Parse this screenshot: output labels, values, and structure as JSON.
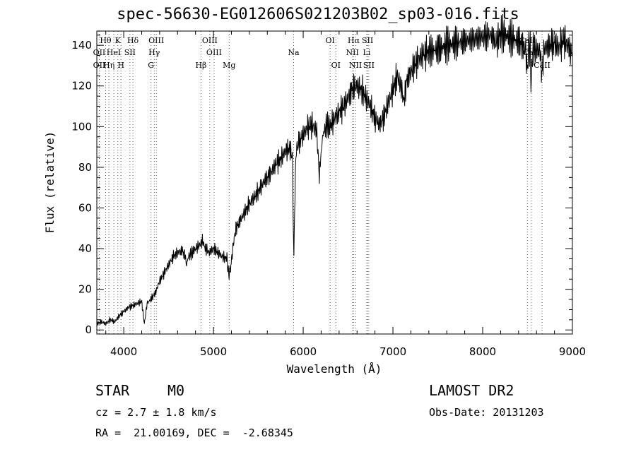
{
  "info": {
    "object_class": "STAR",
    "subclass": "M0",
    "survey": "LAMOST DR2",
    "redshift": "cz = 2.7 ± 1.8 km/s",
    "obs_date": "Obs-Date: 20131203",
    "coords": "RA =  21.00169, DEC =  -2.68345"
  },
  "chart_data": {
    "type": "line",
    "title": "spec-56630-EG012606S021203B02_sp03-016.fits",
    "xlabel": "Wavelength (Å)",
    "ylabel": "Flux (relative)",
    "xlim": [
      3700,
      9000
    ],
    "ylim": [
      -2,
      147
    ],
    "x_ticks": [
      4000,
      5000,
      6000,
      7000,
      8000,
      9000
    ],
    "y_ticks": [
      0,
      20,
      40,
      60,
      80,
      100,
      120,
      140
    ],
    "grid": false,
    "series": [
      {
        "points": [
          [
            3700,
            3
          ],
          [
            3750,
            4
          ],
          [
            3800,
            3
          ],
          [
            3850,
            5
          ],
          [
            3900,
            4
          ],
          [
            3950,
            7
          ],
          [
            4000,
            9
          ],
          [
            4050,
            11
          ],
          [
            4100,
            12
          ],
          [
            4150,
            13
          ],
          [
            4200,
            14
          ],
          [
            4230,
            3
          ],
          [
            4260,
            13
          ],
          [
            4300,
            15
          ],
          [
            4350,
            18
          ],
          [
            4400,
            24
          ],
          [
            4450,
            28
          ],
          [
            4500,
            32
          ],
          [
            4550,
            36
          ],
          [
            4600,
            38
          ],
          [
            4650,
            39
          ],
          [
            4680,
            37
          ],
          [
            4700,
            32
          ],
          [
            4720,
            36
          ],
          [
            4760,
            38
          ],
          [
            4800,
            40
          ],
          [
            4850,
            42
          ],
          [
            4880,
            44
          ],
          [
            4900,
            41
          ],
          [
            4950,
            38
          ],
          [
            5000,
            40
          ],
          [
            5050,
            38
          ],
          [
            5100,
            36
          ],
          [
            5150,
            35
          ],
          [
            5170,
            27
          ],
          [
            5190,
            30
          ],
          [
            5220,
            42
          ],
          [
            5250,
            50
          ],
          [
            5300,
            54
          ],
          [
            5350,
            58
          ],
          [
            5400,
            62
          ],
          [
            5450,
            65
          ],
          [
            5500,
            68
          ],
          [
            5550,
            72
          ],
          [
            5600,
            75
          ],
          [
            5650,
            78
          ],
          [
            5700,
            82
          ],
          [
            5750,
            84
          ],
          [
            5800,
            88
          ],
          [
            5850,
            89
          ],
          [
            5880,
            85
          ],
          [
            5890,
            50
          ],
          [
            5896,
            35
          ],
          [
            5905,
            60
          ],
          [
            5920,
            88
          ],
          [
            5950,
            92
          ],
          [
            6000,
            96
          ],
          [
            6050,
            100
          ],
          [
            6100,
            101
          ],
          [
            6150,
            98
          ],
          [
            6170,
            83
          ],
          [
            6180,
            75
          ],
          [
            6195,
            85
          ],
          [
            6220,
            96
          ],
          [
            6260,
            101
          ],
          [
            6300,
            100
          ],
          [
            6350,
            104
          ],
          [
            6400,
            107
          ],
          [
            6450,
            110
          ],
          [
            6500,
            114
          ],
          [
            6550,
            119
          ],
          [
            6600,
            120
          ],
          [
            6650,
            118
          ],
          [
            6700,
            114
          ],
          [
            6750,
            110
          ],
          [
            6800,
            104
          ],
          [
            6850,
            101
          ],
          [
            6900,
            105
          ],
          [
            6950,
            112
          ],
          [
            7000,
            118
          ],
          [
            7050,
            125
          ],
          [
            7100,
            118
          ],
          [
            7120,
            112
          ],
          [
            7150,
            122
          ],
          [
            7200,
            127
          ],
          [
            7250,
            131
          ],
          [
            7300,
            134
          ],
          [
            7350,
            136
          ],
          [
            7400,
            137
          ],
          [
            7500,
            138
          ],
          [
            7600,
            140
          ],
          [
            7700,
            141
          ],
          [
            7800,
            142
          ],
          [
            7900,
            143
          ],
          [
            8000,
            144
          ],
          [
            8100,
            145
          ],
          [
            8150,
            141
          ],
          [
            8200,
            146
          ],
          [
            8300,
            144
          ],
          [
            8400,
            142
          ],
          [
            8450,
            140
          ],
          [
            8480,
            138
          ],
          [
            8498,
            126
          ],
          [
            8510,
            139
          ],
          [
            8530,
            138
          ],
          [
            8542,
            118
          ],
          [
            8555,
            138
          ],
          [
            8600,
            138
          ],
          [
            8640,
            137
          ],
          [
            8662,
            125
          ],
          [
            8680,
            138
          ],
          [
            8750,
            140
          ],
          [
            8800,
            141
          ],
          [
            8850,
            139
          ],
          [
            8900,
            143
          ],
          [
            8950,
            140
          ],
          [
            9000,
            135
          ]
        ]
      }
    ],
    "line_markers": [
      {
        "label": "Hθ",
        "x": 3798,
        "row": 0
      },
      {
        "label": "K",
        "x": 3934,
        "row": 0
      },
      {
        "label": "Hδ",
        "x": 4102,
        "row": 0
      },
      {
        "label": "OIII",
        "x": 4363,
        "row": 0
      },
      {
        "label": "OIII",
        "x": 4959,
        "row": 0
      },
      {
        "label": "OI",
        "x": 6300,
        "row": 0
      },
      {
        "label": "Hα",
        "x": 6563,
        "row": 0
      },
      {
        "label": "SII",
        "x": 6717,
        "row": 0
      },
      {
        "label": "CaII",
        "x": 8498,
        "row": 0
      },
      {
        "label": "OII",
        "x": 3727,
        "row": 1
      },
      {
        "label": "HeI",
        "x": 3889,
        "row": 1
      },
      {
        "label": "SII",
        "x": 4069,
        "row": 1
      },
      {
        "label": "Hγ",
        "x": 4340,
        "row": 1
      },
      {
        "label": "OIII",
        "x": 5007,
        "row": 1
      },
      {
        "label": "Na",
        "x": 5893,
        "row": 1
      },
      {
        "label": "NII",
        "x": 6548,
        "row": 1
      },
      {
        "label": "Li",
        "x": 6708,
        "row": 1
      },
      {
        "label": "CaII",
        "x": 8542,
        "row": 1
      },
      {
        "label": "OII",
        "x": 3727,
        "row": 2
      },
      {
        "label": "Hη",
        "x": 3835,
        "row": 2
      },
      {
        "label": "H",
        "x": 3969,
        "row": 2
      },
      {
        "label": "G",
        "x": 4304,
        "row": 2
      },
      {
        "label": "Hβ",
        "x": 4861,
        "row": 2
      },
      {
        "label": "Mg",
        "x": 5175,
        "row": 2
      },
      {
        "label": "OI",
        "x": 6364,
        "row": 2
      },
      {
        "label": "NII",
        "x": 6583,
        "row": 2
      },
      {
        "label": "SII",
        "x": 6731,
        "row": 2
      },
      {
        "label": "CaII",
        "x": 8662,
        "row": 2
      }
    ]
  }
}
